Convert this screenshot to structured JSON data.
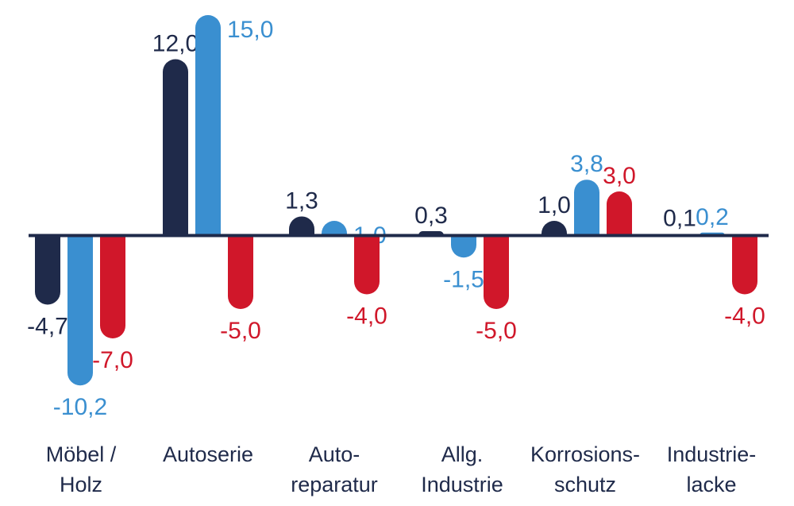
{
  "chart_data": {
    "type": "bar",
    "categories": [
      [
        "Möbel /",
        "Holz"
      ],
      [
        "Autoserie"
      ],
      [
        "Auto-",
        "reparatur"
      ],
      [
        "Allg.",
        "Industrie"
      ],
      [
        "Korrosions-",
        "schutz"
      ],
      [
        "Industrie-",
        "lacke"
      ]
    ],
    "series": [
      {
        "color": "#1f2a4a",
        "values": [
          -4.7,
          12.0,
          1.3,
          0.3,
          1.0,
          0.1
        ],
        "labels": [
          "-4,7",
          "12,0",
          "1,3",
          "0,3",
          "1,0",
          "0,1"
        ]
      },
      {
        "color": "#3a8fd0",
        "values": [
          -10.2,
          15.0,
          1.0,
          -1.5,
          3.8,
          0.2
        ],
        "labels": [
          "-10,2",
          "15,0",
          "1,0",
          "-1,5",
          "3,8",
          "0,2"
        ]
      },
      {
        "color": "#d0172a",
        "values": [
          -7.0,
          -5.0,
          -4.0,
          -5.0,
          3.0,
          -4.0
        ],
        "labels": [
          "-7,0",
          "-5,0",
          "-4,0",
          "-5,0",
          "3,0",
          "-4,0"
        ]
      }
    ],
    "axis_color": "#1f2a4a",
    "grid": false,
    "legend": "none"
  }
}
